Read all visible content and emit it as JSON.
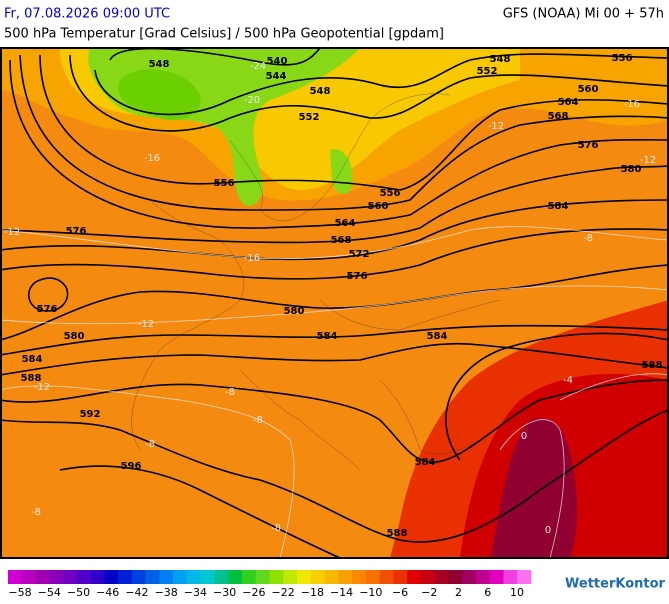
{
  "header": {
    "datetime": "Fr, 07.08.2026 09:00 UTC",
    "model": "GFS (NOAA) Mi 00 + 57h",
    "subtitle": "500 hPa Temperatur [Grad Celsius] / 500 hPa Geopotential [gpdam]"
  },
  "map": {
    "geopotential_labels": [
      "548",
      "540",
      "544",
      "548",
      "552",
      "556",
      "548",
      "552",
      "556",
      "560",
      "564",
      "568",
      "576",
      "580",
      "584",
      "556",
      "560",
      "564",
      "568",
      "572",
      "576",
      "576",
      "576",
      "580",
      "580",
      "584",
      "584",
      "584",
      "588",
      "588",
      "592",
      "596",
      "584",
      "588"
    ],
    "temperature_labels": [
      "-24",
      "-20",
      "-16",
      "-12",
      "-12",
      "-12",
      "-16",
      "-16",
      "-12",
      "-12",
      "-8",
      "-8",
      "-8",
      "-8",
      "-8",
      "-8",
      "-4",
      "0",
      "0"
    ]
  },
  "legend": {
    "colors": [
      "#d000d0",
      "#b800c0",
      "#a000b0",
      "#8a00b8",
      "#7000c0",
      "#5000c8",
      "#3000c8",
      "#0000c8",
      "#0020d8",
      "#0040e0",
      "#0060e8",
      "#0080f0",
      "#00a0f0",
      "#00b8e8",
      "#00c8d0",
      "#00c090",
      "#00c040",
      "#30d020",
      "#60d820",
      "#90e000",
      "#c0e800",
      "#f0e800",
      "#f8d000",
      "#f8b800",
      "#f8a000",
      "#f88800",
      "#f87000",
      "#f05000",
      "#e83000",
      "#e00000",
      "#c80010",
      "#a80020",
      "#900030",
      "#a00060",
      "#c00090",
      "#e000c0",
      "#f040e0",
      "#ff70f0"
    ],
    "labels": [
      "−58",
      "−54",
      "−50",
      "−46",
      "−42",
      "−38",
      "−34",
      "−30",
      "−26",
      "−22",
      "−18",
      "−14",
      "−10",
      "−6",
      "−2",
      "2",
      "6",
      "10"
    ]
  },
  "logo": "WetterKontor"
}
